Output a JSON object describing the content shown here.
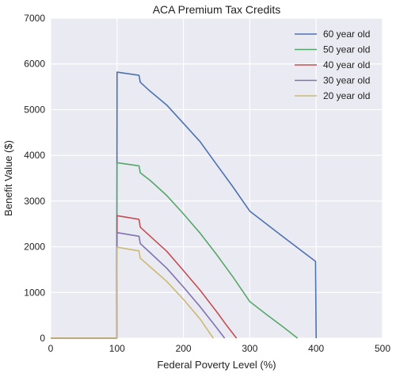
{
  "chart_data": {
    "type": "line",
    "title": "ACA Premium Tax Credits",
    "xlabel": "Federal Poverty Level (%)",
    "ylabel": "Benefit Value ($)",
    "xlim": [
      0,
      500
    ],
    "ylim": [
      0,
      7000
    ],
    "xticks": [
      "0",
      "100",
      "200",
      "300",
      "400",
      "500"
    ],
    "yticks": [
      "0",
      "1000",
      "2000",
      "3000",
      "4000",
      "5000",
      "6000",
      "7000"
    ],
    "grid": true,
    "legend_position": "top-right",
    "series": [
      {
        "name": "60 year old",
        "color": "#4c72b0",
        "points": [
          [
            0,
            0
          ],
          [
            99.5,
            0
          ],
          [
            100,
            5820
          ],
          [
            133,
            5750
          ],
          [
            135,
            5600
          ],
          [
            150,
            5400
          ],
          [
            175,
            5100
          ],
          [
            200,
            4700
          ],
          [
            225,
            4300
          ],
          [
            250,
            3800
          ],
          [
            275,
            3300
          ],
          [
            300,
            2780
          ],
          [
            350,
            2220
          ],
          [
            399,
            1680
          ],
          [
            400,
            0
          ]
        ]
      },
      {
        "name": "50 year old",
        "color": "#55a868",
        "points": [
          [
            0,
            0
          ],
          [
            99.5,
            0
          ],
          [
            100,
            3840
          ],
          [
            133,
            3770
          ],
          [
            135,
            3620
          ],
          [
            150,
            3450
          ],
          [
            175,
            3120
          ],
          [
            200,
            2720
          ],
          [
            225,
            2300
          ],
          [
            250,
            1830
          ],
          [
            275,
            1330
          ],
          [
            300,
            800
          ],
          [
            325,
            520
          ],
          [
            350,
            250
          ],
          [
            372,
            0
          ]
        ]
      },
      {
        "name": "40 year old",
        "color": "#c44e52",
        "points": [
          [
            0,
            0
          ],
          [
            99.5,
            0
          ],
          [
            100,
            2680
          ],
          [
            133,
            2600
          ],
          [
            135,
            2430
          ],
          [
            150,
            2230
          ],
          [
            175,
            1900
          ],
          [
            200,
            1480
          ],
          [
            225,
            1050
          ],
          [
            250,
            580
          ],
          [
            265,
            280
          ],
          [
            280,
            0
          ]
        ]
      },
      {
        "name": "30 year old",
        "color": "#8172b2",
        "points": [
          [
            0,
            0
          ],
          [
            99.5,
            0
          ],
          [
            100,
            2310
          ],
          [
            133,
            2230
          ],
          [
            135,
            2070
          ],
          [
            150,
            1870
          ],
          [
            175,
            1530
          ],
          [
            200,
            1120
          ],
          [
            225,
            690
          ],
          [
            250,
            230
          ],
          [
            262,
            0
          ]
        ]
      },
      {
        "name": "20 year old",
        "color": "#ccb974",
        "points": [
          [
            0,
            0
          ],
          [
            99.5,
            0
          ],
          [
            100,
            1990
          ],
          [
            133,
            1910
          ],
          [
            135,
            1750
          ],
          [
            150,
            1560
          ],
          [
            175,
            1240
          ],
          [
            200,
            850
          ],
          [
            225,
            420
          ],
          [
            245,
            0
          ]
        ]
      }
    ]
  }
}
